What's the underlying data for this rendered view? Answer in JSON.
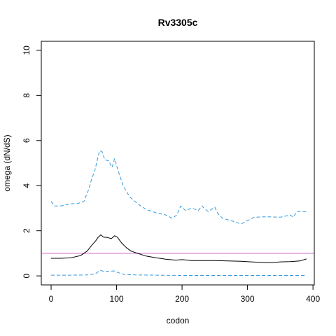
{
  "chart_data": {
    "type": "line",
    "title": "Rv3305c",
    "xlabel": "codon",
    "ylabel": "omega (dN/dS)",
    "xlim": [
      -15,
      402
    ],
    "ylim": [
      -0.4,
      10.4
    ],
    "xticks": [
      0,
      100,
      200,
      300,
      400
    ],
    "yticks": [
      0,
      2,
      4,
      6,
      8,
      10
    ],
    "reference_line": {
      "y": 1,
      "color": "#cc66cc"
    },
    "series": [
      {
        "role": "upper-bound",
        "color": "#3399dd",
        "dash": "dashed",
        "points": [
          [
            0,
            3.3
          ],
          [
            5,
            3.1
          ],
          [
            15,
            3.1
          ],
          [
            30,
            3.2
          ],
          [
            40,
            3.2
          ],
          [
            50,
            3.3
          ],
          [
            57,
            3.8
          ],
          [
            62,
            4.3
          ],
          [
            67,
            4.7
          ],
          [
            71,
            5.2
          ],
          [
            74,
            5.55
          ],
          [
            78,
            5.5
          ],
          [
            82,
            5.15
          ],
          [
            88,
            5.1
          ],
          [
            93,
            4.8
          ],
          [
            97,
            5.2
          ],
          [
            102,
            4.7
          ],
          [
            110,
            4.0
          ],
          [
            120,
            3.5
          ],
          [
            132,
            3.2
          ],
          [
            145,
            2.95
          ],
          [
            160,
            2.8
          ],
          [
            175,
            2.7
          ],
          [
            185,
            2.55
          ],
          [
            192,
            2.7
          ],
          [
            198,
            3.1
          ],
          [
            205,
            2.9
          ],
          [
            215,
            3.0
          ],
          [
            225,
            2.9
          ],
          [
            230,
            3.1
          ],
          [
            240,
            2.85
          ],
          [
            250,
            3.05
          ],
          [
            255,
            2.75
          ],
          [
            262,
            2.55
          ],
          [
            275,
            2.45
          ],
          [
            290,
            2.3
          ],
          [
            300,
            2.45
          ],
          [
            310,
            2.6
          ],
          [
            330,
            2.62
          ],
          [
            350,
            2.6
          ],
          [
            365,
            2.7
          ],
          [
            370,
            2.6
          ],
          [
            375,
            2.85
          ],
          [
            390,
            2.85
          ]
        ]
      },
      {
        "role": "estimate",
        "color": "#000000",
        "dash": "solid",
        "points": [
          [
            0,
            0.78
          ],
          [
            15,
            0.78
          ],
          [
            30,
            0.8
          ],
          [
            45,
            0.9
          ],
          [
            55,
            1.1
          ],
          [
            62,
            1.35
          ],
          [
            68,
            1.55
          ],
          [
            72,
            1.72
          ],
          [
            76,
            1.82
          ],
          [
            80,
            1.72
          ],
          [
            86,
            1.7
          ],
          [
            92,
            1.65
          ],
          [
            97,
            1.78
          ],
          [
            101,
            1.72
          ],
          [
            108,
            1.45
          ],
          [
            115,
            1.25
          ],
          [
            122,
            1.1
          ],
          [
            132,
            1.0
          ],
          [
            145,
            0.88
          ],
          [
            160,
            0.8
          ],
          [
            175,
            0.74
          ],
          [
            190,
            0.7
          ],
          [
            200,
            0.72
          ],
          [
            215,
            0.68
          ],
          [
            230,
            0.68
          ],
          [
            250,
            0.68
          ],
          [
            270,
            0.66
          ],
          [
            290,
            0.65
          ],
          [
            305,
            0.62
          ],
          [
            320,
            0.6
          ],
          [
            335,
            0.58
          ],
          [
            350,
            0.62
          ],
          [
            365,
            0.63
          ],
          [
            380,
            0.66
          ],
          [
            390,
            0.75
          ]
        ]
      },
      {
        "role": "lower-bound",
        "color": "#3399dd",
        "dash": "dashed",
        "points": [
          [
            0,
            0.03
          ],
          [
            30,
            0.03
          ],
          [
            55,
            0.04
          ],
          [
            68,
            0.1
          ],
          [
            75,
            0.25
          ],
          [
            80,
            0.2
          ],
          [
            88,
            0.2
          ],
          [
            96,
            0.22
          ],
          [
            102,
            0.15
          ],
          [
            112,
            0.06
          ],
          [
            130,
            0.04
          ],
          [
            160,
            0.03
          ],
          [
            200,
            0.02
          ],
          [
            300,
            0.02
          ],
          [
            390,
            0.02
          ]
        ]
      }
    ]
  }
}
